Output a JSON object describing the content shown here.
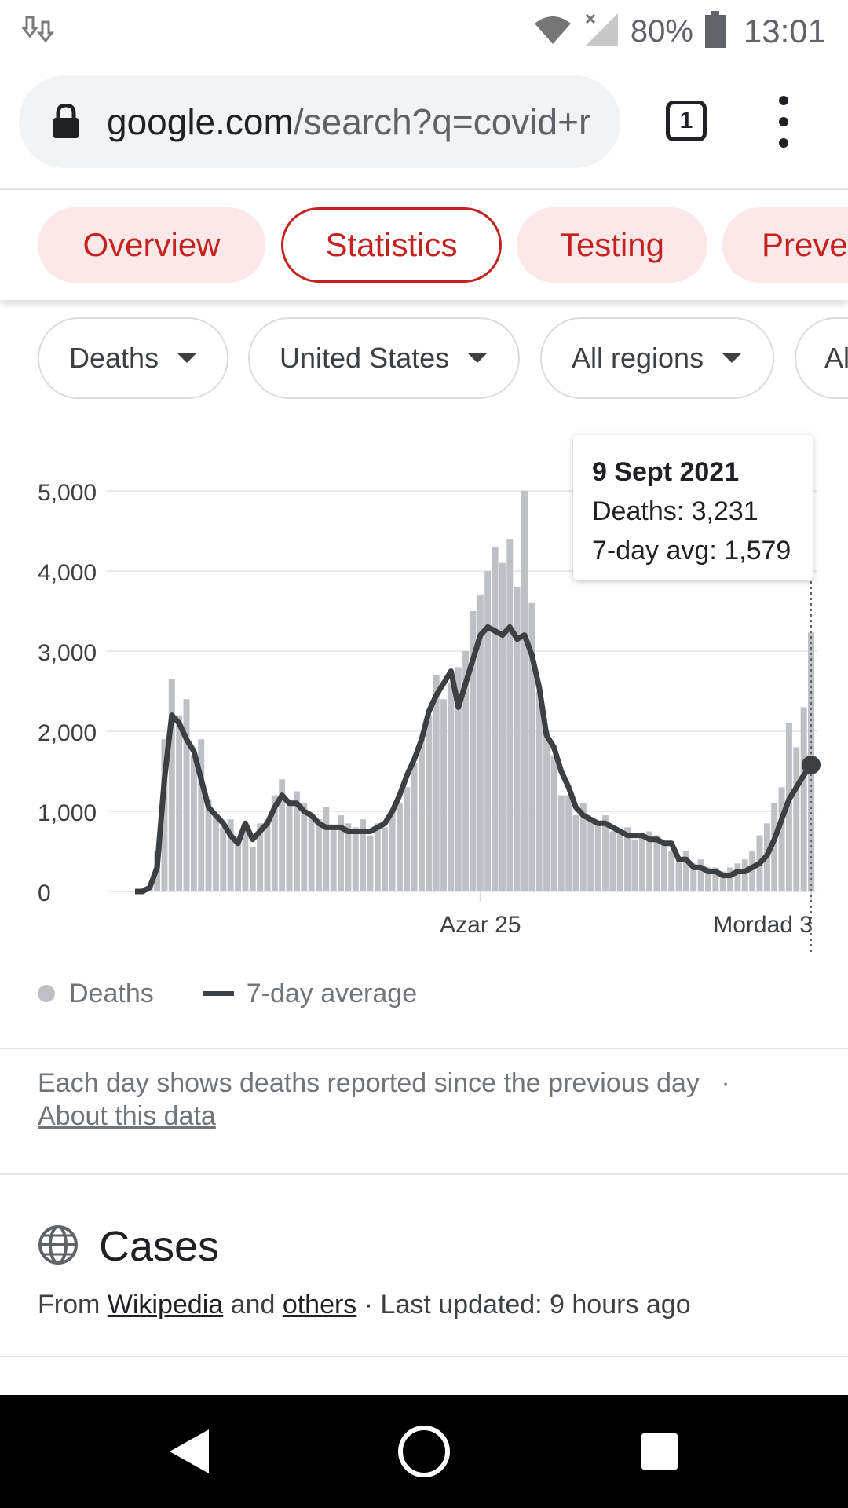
{
  "status_bar": {
    "battery": "80%",
    "time": "13:01"
  },
  "browser": {
    "url_domain": "google.com",
    "url_path": "/search?q=covid+r",
    "tab_count": "1"
  },
  "topic_tabs": [
    {
      "label": "Overview",
      "active": false
    },
    {
      "label": "Statistics",
      "active": true
    },
    {
      "label": "Testing",
      "active": false
    },
    {
      "label": "Preve",
      "active": false
    }
  ],
  "filters": [
    {
      "label": "Deaths"
    },
    {
      "label": "United States"
    },
    {
      "label": "All regions"
    },
    {
      "label": "Al"
    }
  ],
  "tooltip": {
    "date": "9 Sept 2021",
    "deaths": "Deaths: 3,231",
    "avg": "7-day avg: 1,579"
  },
  "chart_data": {
    "type": "bar",
    "title": "",
    "xlabel": "",
    "ylabel": "",
    "ylim": [
      0,
      5000
    ],
    "yticks": [
      0,
      1000,
      2000,
      3000,
      4000,
      5000
    ],
    "ytick_labels": [
      "0",
      "1,000",
      "2,000",
      "3,000",
      "4,000",
      "5,000"
    ],
    "xtick_labels": [
      "Azar 25",
      "Mordad 3"
    ],
    "xtick_index": [
      47,
      92
    ],
    "grid": true,
    "legend_position": "bottom-left",
    "series": [
      {
        "name": "Deaths",
        "type": "bar",
        "color": "#bdc1c6",
        "values": [
          0,
          0,
          50,
          500,
          1900,
          2650,
          2200,
          2400,
          1700,
          1900,
          1150,
          950,
          800,
          900,
          600,
          850,
          550,
          850,
          900,
          1200,
          1400,
          1150,
          1250,
          1100,
          950,
          900,
          1050,
          800,
          950,
          850,
          800,
          900,
          700,
          850,
          800,
          1000,
          1100,
          1300,
          1600,
          1900,
          2200,
          2700,
          2400,
          2600,
          2800,
          3000,
          3500,
          3700,
          4000,
          4300,
          4100,
          4400,
          3800,
          5000,
          3600,
          2500,
          2000,
          1700,
          1200,
          1200,
          950,
          1100,
          900,
          850,
          950,
          750,
          750,
          800,
          650,
          700,
          750,
          700,
          600,
          500,
          400,
          500,
          350,
          400,
          300,
          300,
          250,
          300,
          350,
          400,
          500,
          700,
          850,
          1100,
          1300,
          2100,
          1800,
          2300,
          3231
        ]
      },
      {
        "name": "7-day average",
        "type": "line",
        "color": "#3c4043",
        "values": [
          0,
          0,
          50,
          300,
          1400,
          2200,
          2100,
          1900,
          1750,
          1400,
          1050,
          950,
          850,
          700,
          600,
          850,
          650,
          750,
          850,
          1050,
          1200,
          1100,
          1100,
          1000,
          950,
          850,
          800,
          800,
          800,
          750,
          750,
          750,
          750,
          800,
          850,
          1000,
          1200,
          1450,
          1650,
          1900,
          2250,
          2450,
          2600,
          2750,
          2300,
          2600,
          2900,
          3200,
          3300,
          3250,
          3200,
          3300,
          3150,
          3200,
          2950,
          2550,
          1950,
          1800,
          1500,
          1300,
          1050,
          950,
          900,
          850,
          850,
          800,
          750,
          700,
          700,
          700,
          650,
          650,
          600,
          600,
          400,
          400,
          300,
          300,
          250,
          250,
          200,
          200,
          250,
          250,
          300,
          350,
          450,
          650,
          900,
          1150,
          1300,
          1450,
          1579
        ]
      }
    ]
  },
  "legend": {
    "deaths": "Deaths",
    "avg": "7-day average"
  },
  "note": {
    "text": "Each day shows deaths reported since the previous day",
    "separator": "·",
    "link": "About this data"
  },
  "cases": {
    "title": "Cases",
    "from": "From",
    "link1": "Wikipedia",
    "and": "and",
    "link2": "others",
    "updated": "· Last updated: 9 hours ago"
  }
}
